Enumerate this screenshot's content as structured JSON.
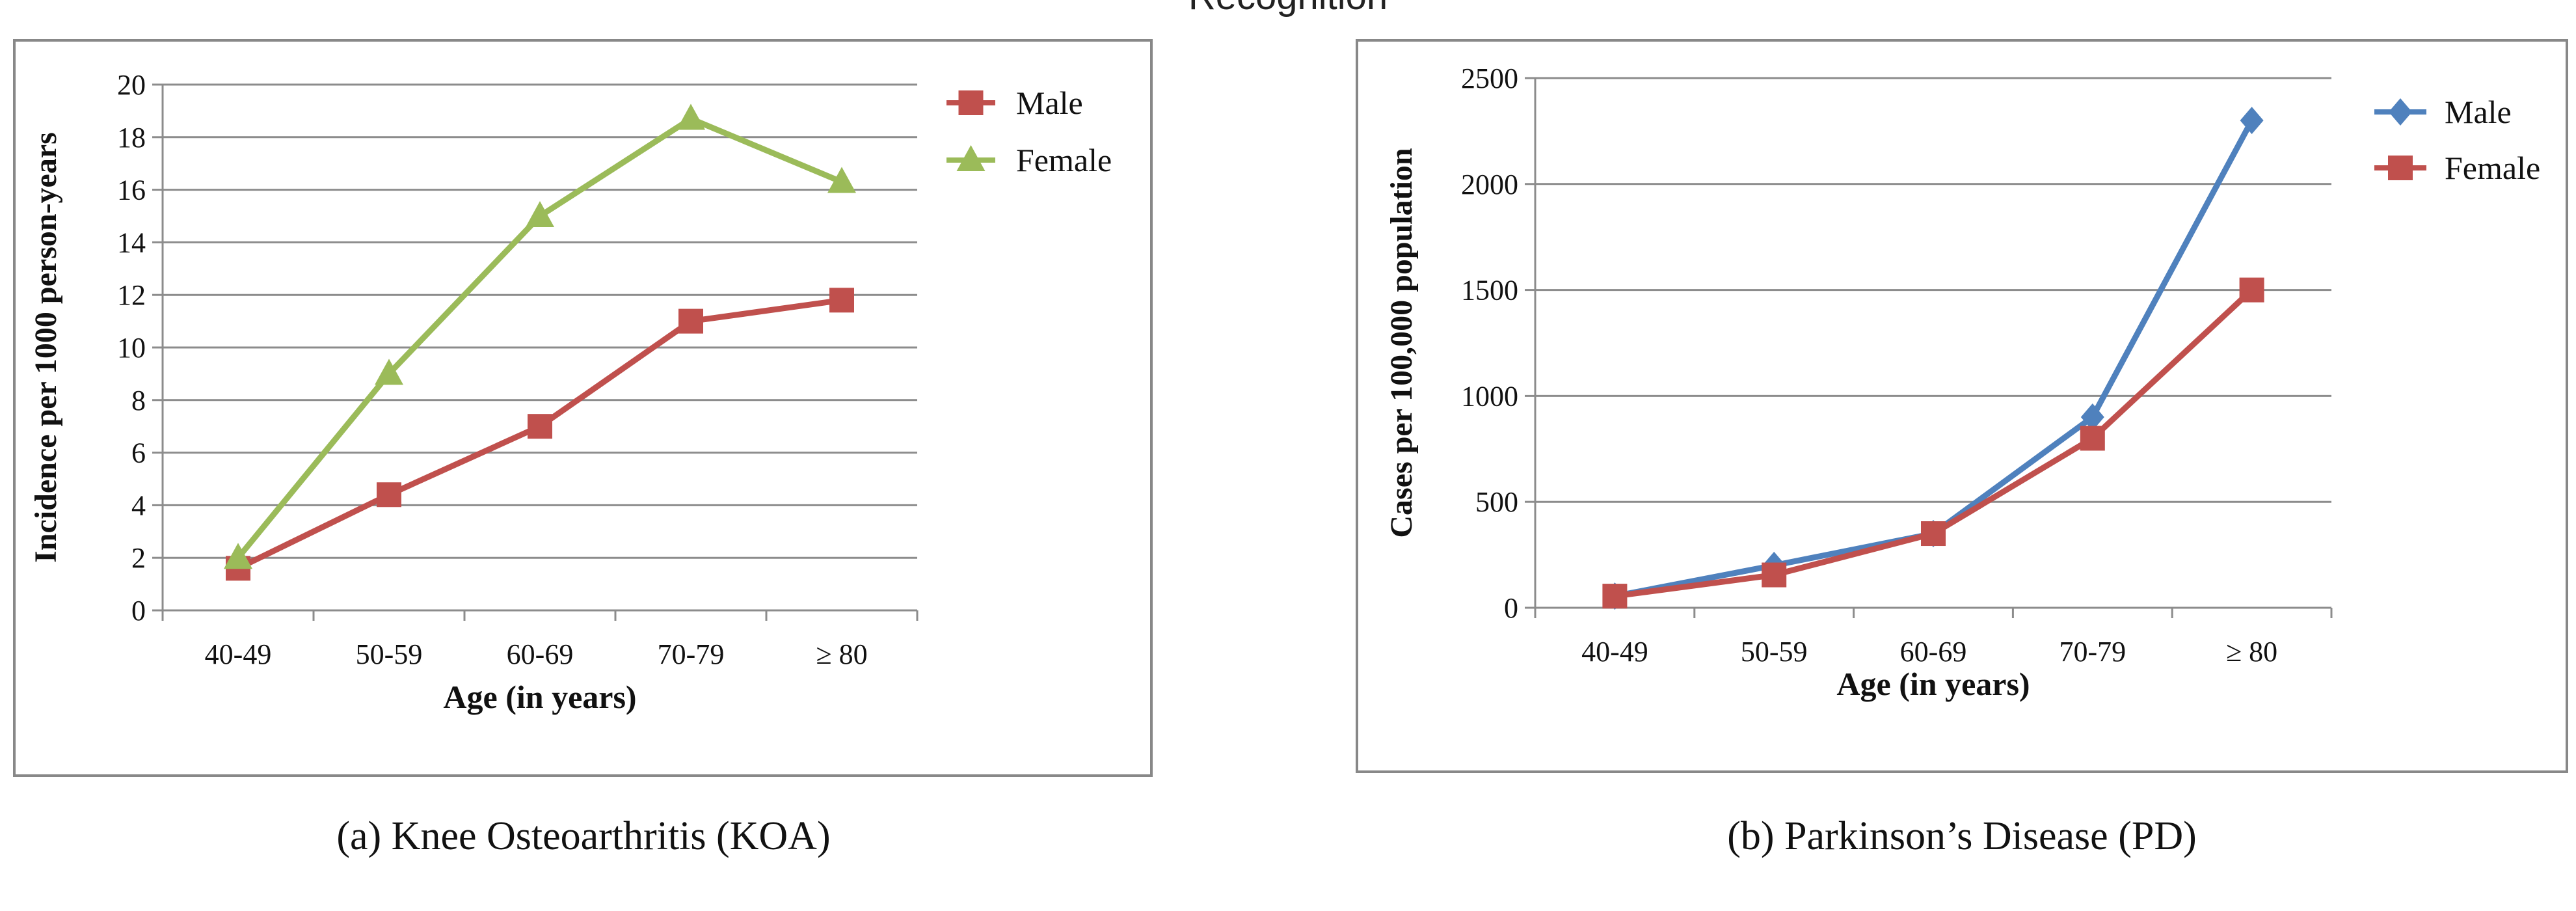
{
  "figure": {
    "top_title": "Recognition",
    "panels": [
      {
        "caption": "(a) Knee Osteoarthritis (KOA)"
      },
      {
        "caption": "(b) Parkinson’s Disease (PD)"
      }
    ]
  },
  "chart_data": [
    {
      "type": "line",
      "title": "",
      "xlabel": "Age (in years)",
      "ylabel": "Incidence per 1000 person-years",
      "categories": [
        "40-49",
        "50-59",
        "60-69",
        "70-79",
        "≥ 80"
      ],
      "ylim": [
        0,
        20
      ],
      "yticks": [
        0,
        2,
        4,
        6,
        8,
        10,
        12,
        14,
        16,
        18,
        20
      ],
      "grid": true,
      "legend": "top-right",
      "series": [
        {
          "name": "Male",
          "values": [
            1.6,
            4.4,
            7.0,
            11.0,
            11.8
          ],
          "color": "#C0504D",
          "marker": "square"
        },
        {
          "name": "Female",
          "values": [
            2.0,
            9.0,
            15.0,
            18.7,
            16.3
          ],
          "color": "#9BBB59",
          "marker": "triangle"
        }
      ]
    },
    {
      "type": "line",
      "title": "",
      "xlabel": "Age (in years)",
      "ylabel": "Cases per 100,000 population",
      "categories": [
        "40-49",
        "50-59",
        "60-69",
        "70-79",
        "≥ 80"
      ],
      "ylim": [
        0,
        2500
      ],
      "yticks": [
        0,
        500,
        1000,
        1500,
        2000,
        2500
      ],
      "grid": true,
      "legend": "top-right",
      "series": [
        {
          "name": "Male",
          "values": [
            55,
            200,
            350,
            900,
            2300
          ],
          "color": "#4F81BD",
          "marker": "diamond"
        },
        {
          "name": "Female",
          "values": [
            55,
            155,
            350,
            800,
            1500
          ],
          "color": "#C0504D",
          "marker": "square"
        }
      ]
    }
  ]
}
